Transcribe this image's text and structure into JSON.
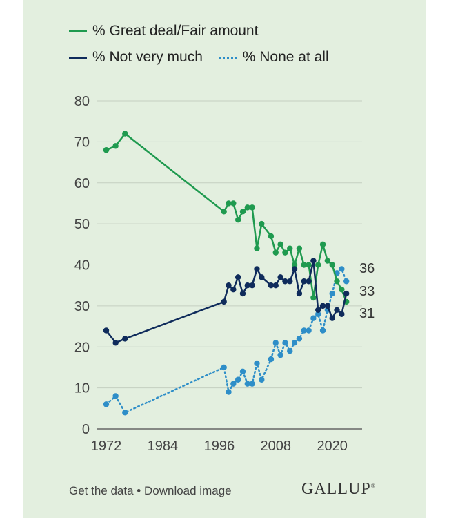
{
  "chart_data": {
    "type": "line",
    "title": "",
    "xlabel": "",
    "ylabel": "",
    "xlim": [
      1972,
      2024
    ],
    "ylim": [
      0,
      80
    ],
    "x_ticks": [
      "1972",
      "1984",
      "1996",
      "2008",
      "2020"
    ],
    "y_ticks": [
      "0",
      "10",
      "20",
      "30",
      "40",
      "50",
      "60",
      "70",
      "80"
    ],
    "grid": true,
    "legend_position": "top",
    "series": [
      {
        "name": "% Great deal/Fair amount",
        "color": "#1f9a4f",
        "style": "solid",
        "end_label": "31",
        "x": [
          1972,
          1974,
          1976,
          1997,
          1998,
          1999,
          2000,
          2001,
          2002,
          2003,
          2004,
          2005,
          2007,
          2008,
          2009,
          2010,
          2011,
          2012,
          2013,
          2014,
          2015,
          2016,
          2017,
          2018,
          2019,
          2020,
          2021,
          2022,
          2023
        ],
        "y": [
          68,
          69,
          72,
          53,
          55,
          55,
          51,
          53,
          54,
          54,
          44,
          50,
          47,
          43,
          45,
          43,
          44,
          40,
          44,
          40,
          40,
          32,
          40,
          45,
          41,
          40,
          36,
          34,
          31
        ]
      },
      {
        "name": "% Not very much",
        "color": "#0f2b5b",
        "style": "solid",
        "end_label": "33",
        "x": [
          1972,
          1974,
          1976,
          1997,
          1998,
          1999,
          2000,
          2001,
          2002,
          2003,
          2004,
          2005,
          2007,
          2008,
          2009,
          2010,
          2011,
          2012,
          2013,
          2014,
          2015,
          2016,
          2017,
          2018,
          2019,
          2020,
          2021,
          2022,
          2023
        ],
        "y": [
          24,
          21,
          22,
          31,
          35,
          34,
          37,
          33,
          35,
          35,
          39,
          37,
          35,
          35,
          37,
          36,
          36,
          39,
          33,
          36,
          36,
          41,
          29,
          30,
          30,
          27,
          29,
          28,
          33
        ]
      },
      {
        "name": "% None at all",
        "color": "#2e8ec8",
        "style": "dotted",
        "end_label": "36",
        "x": [
          1972,
          1974,
          1976,
          1997,
          1998,
          1999,
          2000,
          2001,
          2002,
          2003,
          2004,
          2005,
          2007,
          2008,
          2009,
          2010,
          2011,
          2012,
          2013,
          2014,
          2015,
          2016,
          2017,
          2018,
          2019,
          2020,
          2021,
          2022,
          2023
        ],
        "y": [
          6,
          8,
          4,
          15,
          9,
          11,
          12,
          14,
          11,
          11,
          16,
          12,
          17,
          21,
          18,
          21,
          19,
          21,
          22,
          24,
          24,
          27,
          28,
          24,
          29,
          33,
          38,
          39,
          36
        ]
      }
    ]
  },
  "footer": {
    "get_data": "Get the data",
    "separator": " • ",
    "download": "Download image",
    "logo": "GALLUP"
  }
}
